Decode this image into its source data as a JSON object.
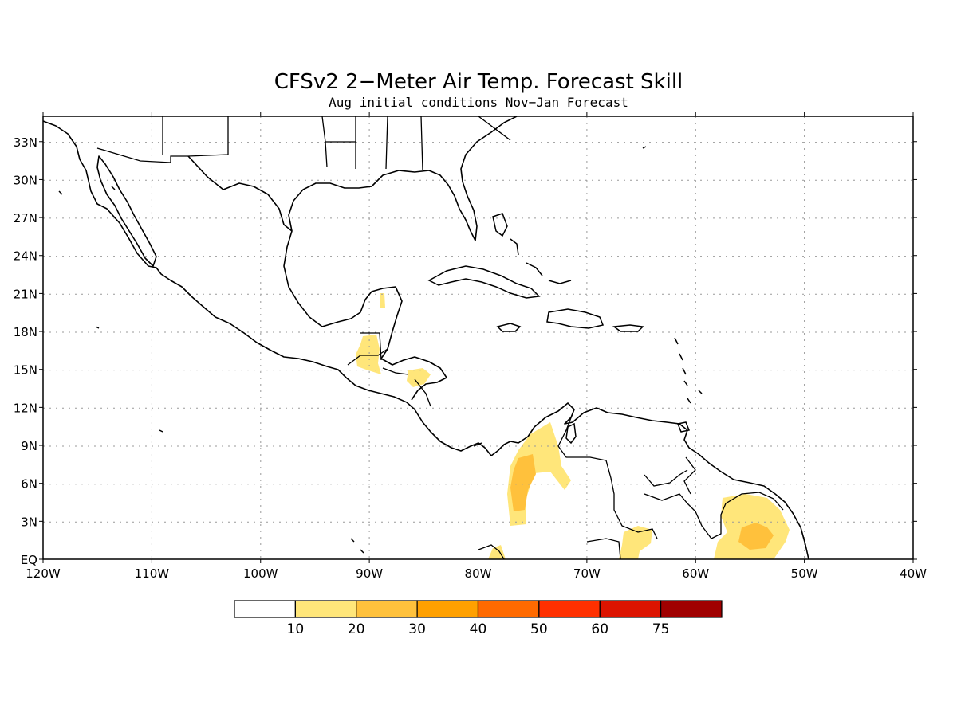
{
  "title": "CFSv2 2−Meter Air Temp. Forecast Skill",
  "subtitle": "Aug initial conditions  Nov−Jan Forecast",
  "map": {
    "lon_range": [
      -120,
      -40
    ],
    "lat_range": [
      0,
      35
    ],
    "gridlines": "dotted",
    "lat_ticks": [
      "33N",
      "30N",
      "27N",
      "24N",
      "21N",
      "18N",
      "15N",
      "12N",
      "9N",
      "6N",
      "3N",
      "EQ"
    ],
    "lon_ticks": [
      "120W",
      "110W",
      "100W",
      "90W",
      "80W",
      "70W",
      "60W",
      "50W",
      "40W"
    ]
  },
  "colorbar": {
    "labels": [
      "10",
      "20",
      "30",
      "40",
      "50",
      "60",
      "75"
    ],
    "colors": [
      "#ffffff",
      "#ffe67a",
      "#ffc13c",
      "#ffa000",
      "#ff6a00",
      "#ff3000",
      "#dc1400",
      "#a00000"
    ]
  },
  "skill_regions": [
    {
      "name": "yucatan",
      "level": 1
    },
    {
      "name": "guatemala",
      "level": 1
    },
    {
      "name": "honduras",
      "level": 1
    },
    {
      "name": "colombia-west",
      "level": 2
    },
    {
      "name": "colombia-central",
      "level": 1
    },
    {
      "name": "venezuela-south",
      "level": 1
    },
    {
      "name": "ecuador",
      "level": 1
    },
    {
      "name": "suriname",
      "level": 1
    },
    {
      "name": "suriname-core",
      "level": 2
    }
  ]
}
